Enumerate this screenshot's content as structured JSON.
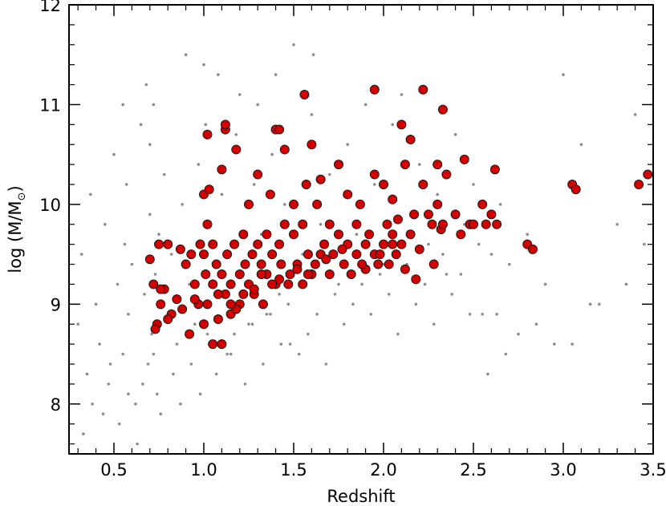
{
  "chart_data": {
    "type": "scatter",
    "title": "",
    "xlabel": "Redshift",
    "ylabel_prefix": "log (M/M",
    "ylabel_sub": "⊙",
    "ylabel_suffix": ")",
    "xlim": [
      0.25,
      3.5
    ],
    "ylim": [
      7.5,
      12
    ],
    "xticks": [
      {
        "value": 0.5,
        "label": "0.5"
      },
      {
        "value": 1.0,
        "label": "1.0"
      },
      {
        "value": 1.5,
        "label": "1.5"
      },
      {
        "value": 2.0,
        "label": "2.0"
      },
      {
        "value": 2.5,
        "label": "2.5"
      },
      {
        "value": 3.0,
        "label": "3.0"
      },
      {
        "value": 3.5,
        "label": "3.5"
      }
    ],
    "yticks": [
      {
        "value": 8,
        "label": "8"
      },
      {
        "value": 9,
        "label": "9"
      },
      {
        "value": 10,
        "label": "10"
      },
      {
        "value": 11,
        "label": "11"
      },
      {
        "value": 12,
        "label": "12"
      }
    ],
    "grid": false,
    "colors": {
      "background_points": "#8c8c8c",
      "highlight_fill": "#d40000",
      "highlight_edge": "#1a1a1a"
    },
    "series": [
      {
        "style": "small-gray-dots",
        "x": [
          0.3,
          0.32,
          0.35,
          0.37,
          0.4,
          0.42,
          0.45,
          0.47,
          0.5,
          0.52,
          0.55,
          0.55,
          0.56,
          0.57,
          0.58,
          0.6,
          0.62,
          0.65,
          0.67,
          0.68,
          0.69,
          0.7,
          0.7,
          0.71,
          0.72,
          0.73,
          0.74,
          0.75,
          0.78,
          0.8,
          0.82,
          0.85,
          0.88,
          0.9,
          0.92,
          0.95,
          0.97,
          1.0,
          1.0,
          1.01,
          1.02,
          1.05,
          1.08,
          1.1,
          1.12,
          1.15,
          1.18,
          1.2,
          1.22,
          1.25,
          1.28,
          1.3,
          1.32,
          1.35,
          1.38,
          1.4,
          1.42,
          1.45,
          1.48,
          1.5,
          1.55,
          1.6,
          1.61,
          1.65,
          1.7,
          1.75,
          1.8,
          1.85,
          1.9,
          1.95,
          2.0,
          2.05,
          2.1,
          2.15,
          2.2,
          2.25,
          2.3,
          2.35,
          2.4,
          2.45,
          2.5,
          2.55,
          2.6,
          2.65,
          2.7,
          2.8,
          2.9,
          3.0,
          3.05,
          3.1,
          3.2,
          3.3,
          3.4,
          3.45,
          0.33,
          0.38,
          0.44,
          0.48,
          0.53,
          0.58,
          0.63,
          0.66,
          0.72,
          0.76,
          0.83,
          0.87,
          0.93,
          0.98,
          1.03,
          1.07,
          1.13,
          1.17,
          1.23,
          1.27,
          1.33,
          1.37,
          1.43,
          1.47,
          1.53,
          1.58,
          1.63,
          1.68,
          1.73,
          1.78,
          1.83,
          1.88,
          1.93,
          1.98,
          2.03,
          2.08,
          2.13,
          2.18,
          2.23,
          2.28,
          2.33,
          2.38,
          2.43,
          2.48,
          2.53,
          2.58,
          2.63,
          2.68,
          2.75,
          2.85,
          2.95,
          3.15,
          3.35
        ],
        "y": [
          8.8,
          9.5,
          8.3,
          10.1,
          9.0,
          8.6,
          9.8,
          8.2,
          10.5,
          9.2,
          11.0,
          8.5,
          9.6,
          10.2,
          8.9,
          9.4,
          8.0,
          10.8,
          9.1,
          11.2,
          8.4,
          9.9,
          10.6,
          8.7,
          11.0,
          9.3,
          8.1,
          9.7,
          10.3,
          8.9,
          9.5,
          8.6,
          10.0,
          11.5,
          9.2,
          8.8,
          10.4,
          11.4,
          9.0,
          10.8,
          8.7,
          9.6,
          11.3,
          10.1,
          9.3,
          8.5,
          10.7,
          11.1,
          9.4,
          8.8,
          10.2,
          11.0,
          9.7,
          8.9,
          10.5,
          11.3,
          9.1,
          10.0,
          8.6,
          11.6,
          9.5,
          10.9,
          11.5,
          9.8,
          10.3,
          9.2,
          10.6,
          9.7,
          11.0,
          10.2,
          9.4,
          10.8,
          11.1,
          9.9,
          10.4,
          9.6,
          10.1,
          9.3,
          10.7,
          9.8,
          10.2,
          8.9,
          9.5,
          10.0,
          9.4,
          9.7,
          9.2,
          11.3,
          8.6,
          10.6,
          9.0,
          9.8,
          10.9,
          9.6,
          7.7,
          8.0,
          7.9,
          8.4,
          7.8,
          8.1,
          7.6,
          8.2,
          8.5,
          7.9,
          8.3,
          8.0,
          8.4,
          8.1,
          8.6,
          8.3,
          8.5,
          8.7,
          8.2,
          8.8,
          8.4,
          8.9,
          8.6,
          9.0,
          8.5,
          8.7,
          8.9,
          8.4,
          9.1,
          8.8,
          9.0,
          9.2,
          8.9,
          9.3,
          9.1,
          8.7,
          9.4,
          9.0,
          9.2,
          8.8,
          9.5,
          9.1,
          9.3,
          8.9,
          9.6,
          8.3,
          8.9,
          8.5,
          8.7,
          8.8,
          8.6,
          9.0,
          9.2
        ]
      },
      {
        "style": "red-circles",
        "x": [
          0.7,
          0.72,
          0.74,
          0.75,
          0.76,
          0.78,
          0.8,
          0.82,
          0.85,
          0.87,
          0.9,
          0.92,
          0.93,
          0.95,
          0.97,
          0.98,
          1.0,
          1.0,
          1.01,
          1.02,
          1.02,
          1.03,
          1.05,
          1.05,
          1.07,
          1.08,
          1.1,
          1.1,
          1.12,
          1.12,
          1.13,
          1.15,
          1.15,
          1.17,
          1.18,
          1.2,
          1.2,
          1.22,
          1.23,
          1.25,
          1.25,
          1.27,
          1.28,
          1.3,
          1.3,
          1.32,
          1.33,
          1.35,
          1.35,
          1.37,
          1.38,
          1.4,
          1.4,
          1.42,
          1.43,
          1.45,
          1.45,
          1.48,
          1.5,
          1.5,
          1.52,
          1.55,
          1.55,
          1.57,
          1.58,
          1.6,
          1.6,
          1.62,
          1.63,
          1.65,
          1.65,
          1.67,
          1.7,
          1.7,
          1.72,
          1.75,
          1.75,
          1.78,
          1.8,
          1.8,
          1.82,
          1.85,
          1.85,
          1.87,
          1.9,
          1.9,
          1.92,
          1.95,
          1.95,
          1.97,
          2.0,
          2.0,
          2.02,
          2.03,
          2.05,
          2.05,
          2.07,
          2.08,
          2.1,
          2.1,
          2.12,
          2.15,
          2.15,
          2.17,
          2.2,
          2.22,
          2.25,
          2.27,
          2.3,
          2.3,
          2.32,
          2.33,
          2.35,
          2.4,
          2.43,
          2.45,
          2.48,
          2.5,
          2.55,
          2.57,
          2.6,
          2.62,
          2.63,
          2.8,
          2.83,
          3.05,
          3.07,
          3.42,
          3.47,
          1.56,
          1.95,
          2.22,
          2.33,
          1.12,
          1.42,
          1.02,
          1.0,
          1.05,
          1.1,
          1.18,
          1.22,
          1.32,
          1.42,
          1.47,
          1.52,
          1.58,
          1.68,
          1.77,
          1.88,
          1.98,
          2.05,
          2.12,
          2.18,
          2.28,
          0.73,
          0.76,
          0.8,
          0.88,
          0.95,
          1.08,
          1.15,
          1.28,
          1.38
        ],
        "y": [
          9.45,
          9.2,
          8.8,
          9.6,
          9.0,
          9.15,
          9.6,
          8.9,
          9.05,
          9.55,
          9.4,
          8.7,
          9.5,
          9.2,
          9.0,
          9.6,
          10.1,
          9.5,
          9.3,
          9.8,
          9.0,
          10.15,
          9.6,
          9.2,
          9.4,
          8.85,
          10.35,
          9.3,
          10.75,
          9.1,
          9.5,
          9.2,
          8.9,
          9.6,
          10.55,
          9.3,
          9.0,
          9.7,
          9.4,
          9.2,
          10.0,
          9.5,
          9.1,
          9.6,
          10.3,
          9.4,
          9.0,
          9.7,
          9.3,
          10.1,
          9.5,
          9.2,
          10.75,
          9.6,
          9.4,
          9.8,
          10.55,
          9.3,
          9.7,
          10.0,
          9.4,
          9.2,
          9.8,
          10.2,
          9.5,
          9.3,
          10.6,
          9.4,
          10.0,
          9.5,
          10.25,
          9.6,
          9.3,
          9.8,
          9.5,
          9.7,
          10.4,
          9.4,
          9.6,
          10.1,
          9.3,
          9.8,
          9.5,
          10.0,
          9.6,
          9.35,
          9.7,
          9.5,
          10.3,
          9.4,
          9.6,
          10.2,
          9.8,
          9.4,
          9.7,
          10.05,
          9.5,
          9.85,
          10.8,
          9.6,
          10.4,
          9.7,
          10.65,
          9.9,
          9.55,
          10.2,
          9.9,
          9.8,
          10.0,
          10.4,
          9.75,
          9.8,
          10.3,
          9.9,
          9.7,
          10.45,
          9.8,
          9.8,
          10.0,
          9.8,
          9.9,
          10.35,
          9.8,
          9.6,
          9.55,
          10.2,
          10.15,
          10.2,
          10.3,
          11.1,
          11.15,
          11.15,
          10.95,
          10.8,
          10.75,
          10.7,
          8.8,
          8.6,
          8.6,
          8.95,
          9.1,
          9.3,
          9.25,
          9.2,
          9.35,
          9.3,
          9.45,
          9.55,
          9.4,
          9.5,
          9.6,
          9.35,
          9.25,
          9.4,
          8.75,
          9.15,
          8.85,
          8.95,
          9.05,
          9.1,
          9.0,
          9.15,
          9.2
        ]
      }
    ]
  }
}
